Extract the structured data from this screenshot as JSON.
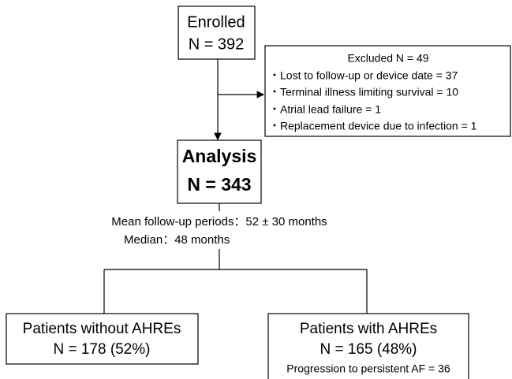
{
  "enrolled": {
    "title": "Enrolled",
    "count": "N = 392"
  },
  "excluded": {
    "title": "Excluded N = 49",
    "items": [
      "・Lost to follow-up or device date = 37",
      "・Terminal illness limiting survival =  10",
      "・Atrial lead failure  = 1",
      "・Replacement device due to infection = 1"
    ]
  },
  "analysis": {
    "title": "Analysis",
    "count": "N = 343"
  },
  "follow_up": {
    "mean": "Mean follow-up periods：52 ± 30 months",
    "median": "Median：48 months"
  },
  "groups": [
    {
      "title": "Patients without AHREs",
      "count": "N = 178 (52%)"
    },
    {
      "title": "Patients with AHREs",
      "count": "N = 165 (48%)",
      "note": "Progression to persistent AF = 36"
    }
  ]
}
